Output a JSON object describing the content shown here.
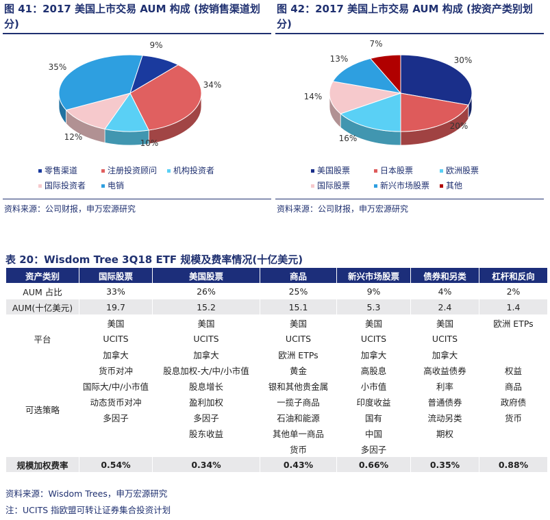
{
  "figures": [
    {
      "title": "图 41：2017 美国上市交易 AUM 构成 (按销售渠道划分)",
      "source": "资料来源：公司财报，申万宏源研究",
      "chart_data": {
        "type": "pie",
        "categories": [
          "零售渠道",
          "注册投资顾问",
          "机构投资者",
          "国际投资者",
          "电销"
        ],
        "values": [
          9,
          34,
          10,
          12,
          35
        ],
        "labels": [
          "9%",
          "34%",
          "10%",
          "12%",
          "35%"
        ],
        "colors": [
          "#1a3a9e",
          "#e06060",
          "#5ad0f5",
          "#f6c9cc",
          "#2e9fe0"
        ],
        "title": "",
        "legend_position": "bottom"
      }
    },
    {
      "title": "图 42：2017 美国上市交易 AUM 构成 (按资产类别划分)",
      "source": "资料来源：公司财报，申万宏源研究",
      "chart_data": {
        "type": "pie",
        "categories": [
          "美国股票",
          "日本股票",
          "欧洲股票",
          "国际股票",
          "新兴市场股票",
          "其他"
        ],
        "values": [
          30,
          20,
          16,
          14,
          13,
          7
        ],
        "labels": [
          "30%",
          "20%",
          "16%",
          "14%",
          "13%",
          "7%"
        ],
        "colors": [
          "#1a2f8a",
          "#de5b5b",
          "#5ad0f5",
          "#f6c9cc",
          "#2e9fe0",
          "#b00000"
        ],
        "title": "",
        "legend_position": "bottom"
      }
    }
  ],
  "table": {
    "title": "表 20：Wisdom Tree 3Q18 ETF 规模及费率情况(十亿美元)",
    "headers": [
      "资产类别",
      "国际股票",
      "美国股票",
      "商品",
      "新兴市场股票",
      "债券和另类",
      "杠杆和反向"
    ],
    "aum_share": {
      "label": "AUM 占比",
      "values": [
        "33%",
        "26%",
        "25%",
        "9%",
        "4%",
        "2%"
      ]
    },
    "aum": {
      "label": "AUM(十亿美元)",
      "values": [
        "19.7",
        "15.2",
        "15.1",
        "5.3",
        "2.4",
        "1.4"
      ]
    },
    "platform": {
      "label": "平台",
      "rows": [
        [
          "美国",
          "美国",
          "美国",
          "美国",
          "美国",
          "欧洲 ETPs"
        ],
        [
          "UCITS",
          "UCITS",
          "UCITS",
          "UCITS",
          "UCITS",
          ""
        ],
        [
          "加拿大",
          "加拿大",
          "欧洲 ETPs",
          "加拿大",
          "加拿大",
          ""
        ]
      ]
    },
    "strategy": {
      "label": "可选策略",
      "rows": [
        [
          "货币对冲",
          "股息加权-大/中/小市值",
          "黄金",
          "高股息",
          "高收益债券",
          "权益"
        ],
        [
          "国际大/中/小市值",
          "股息增长",
          "银和其他贵金属",
          "小市值",
          "利率",
          "商品"
        ],
        [
          "动态货币对冲",
          "盈利加权",
          "一揽子商品",
          "印度收益",
          "普通债券",
          "政府债"
        ],
        [
          "多因子",
          "多因子",
          "石油和能源",
          "国有",
          "流动另类",
          "货币"
        ],
        [
          "",
          "股东收益",
          "其他单一商品",
          "中国",
          "期权",
          ""
        ],
        [
          "",
          "",
          "货币",
          "多因子",
          "",
          ""
        ]
      ]
    },
    "fee": {
      "label": "规模加权费率",
      "values": [
        "0.54%",
        "0.34%",
        "0.43%",
        "0.66%",
        "0.35%",
        "0.88%"
      ]
    },
    "source": "资料来源：Wisdom Trees，申万宏源研究",
    "note": "注：UCITS 指欧盟可转让证券集合投资计划"
  }
}
